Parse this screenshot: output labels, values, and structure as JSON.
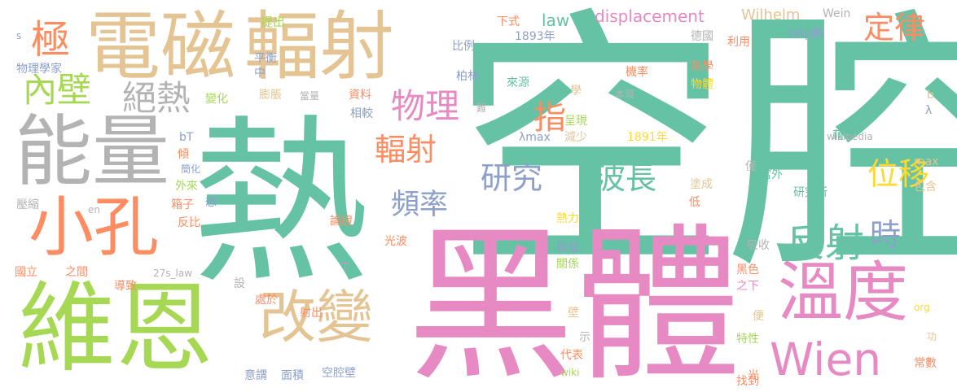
{
  "palette": {
    "green": "#66c2a5",
    "pink": "#e78ac3",
    "tan": "#e5c494",
    "lime": "#a6d854",
    "orange": "#fc8d62",
    "blue": "#8da0cb",
    "gray": "#b3b3b3",
    "yellow": "#ffd92f"
  },
  "words": [
    {
      "text": "熱",
      "color": "green"
    },
    {
      "text": "空腔",
      "color": "green"
    },
    {
      "text": "黑體",
      "color": "pink"
    },
    {
      "text": "電磁",
      "color": "tan"
    },
    {
      "text": "輻射",
      "color": "tan"
    },
    {
      "text": "維恩",
      "color": "lime"
    },
    {
      "text": "能量",
      "color": "gray"
    },
    {
      "text": "小孔",
      "color": "orange"
    },
    {
      "text": "改變",
      "color": "tan"
    },
    {
      "text": "溫度",
      "color": "pink"
    },
    {
      "text": "Wien",
      "color": "pink"
    },
    {
      "text": "反射",
      "color": "green"
    },
    {
      "text": "內壁",
      "color": "lime"
    },
    {
      "text": "極",
      "color": "orange"
    },
    {
      "text": "絕熱",
      "color": "gray"
    },
    {
      "text": "物理",
      "color": "pink"
    },
    {
      "text": "輻射",
      "color": "orange"
    },
    {
      "text": "指",
      "color": "orange"
    },
    {
      "text": "研究",
      "color": "blue"
    },
    {
      "text": "波長",
      "color": "green"
    },
    {
      "text": "頻率",
      "color": "blue"
    },
    {
      "text": "定律",
      "color": "orange"
    },
    {
      "text": "位移",
      "color": "yellow"
    },
    {
      "text": "時",
      "color": "blue"
    },
    {
      "text": "displacement",
      "color": "pink"
    },
    {
      "text": "law",
      "color": "green"
    },
    {
      "text": "Wilhelm",
      "color": "tan"
    },
    {
      "text": "Wein",
      "color": "gray"
    },
    {
      "text": "提出",
      "color": "lime"
    },
    {
      "text": "下式",
      "color": "orange"
    },
    {
      "text": "1893年",
      "color": "blue"
    },
    {
      "text": "比例",
      "color": "blue"
    },
    {
      "text": "平衡",
      "color": "blue"
    },
    {
      "text": "中",
      "color": "blue"
    },
    {
      "text": "物理學家",
      "color": "blue"
    },
    {
      "text": "http開",
      "color": "blue"
    },
    {
      "text": "德國",
      "color": "gray"
    },
    {
      "text": "利用",
      "color": "orange"
    },
    {
      "text": "機率",
      "color": "orange"
    },
    {
      "text": "熱學",
      "color": "orange"
    },
    {
      "text": "物體",
      "color": "yellow"
    },
    {
      "text": "柏林",
      "color": "blue"
    },
    {
      "text": "來源",
      "color": "green"
    },
    {
      "text": "學",
      "color": "tan"
    },
    {
      "text": "膨脹",
      "color": "tan"
    },
    {
      "text": "資料",
      "color": "orange"
    },
    {
      "text": "變化",
      "color": "lime"
    },
    {
      "text": "當量",
      "color": "gray"
    },
    {
      "text": "本質",
      "color": "gray"
    },
    {
      "text": "難",
      "color": "gray"
    },
    {
      "text": "相較",
      "color": "blue"
    },
    {
      "text": "呈現",
      "color": "lime"
    },
    {
      "text": "減少",
      "color": "tan"
    },
    {
      "text": "λmax",
      "color": "blue"
    },
    {
      "text": "1891年",
      "color": "yellow"
    },
    {
      "text": "bT",
      "color": "blue"
    },
    {
      "text": "傾",
      "color": "orange"
    },
    {
      "text": "簡化",
      "color": "blue"
    },
    {
      "text": "外來",
      "color": "lime"
    },
    {
      "text": "箱子",
      "color": "orange"
    },
    {
      "text": "反比",
      "color": "orange"
    },
    {
      "text": "想",
      "color": "blue"
    },
    {
      "text": "en",
      "color": "gray"
    },
    {
      "text": "壓縮",
      "color": "gray"
    },
    {
      "text": "論證",
      "color": "orange"
    },
    {
      "text": "熱力",
      "color": "yellow"
    },
    {
      "text": "光波",
      "color": "orange"
    },
    {
      "text": "模擬",
      "color": "blue"
    },
    {
      "text": "關係",
      "color": "lime"
    },
    {
      "text": "吸收",
      "color": "gray"
    },
    {
      "text": "黑色",
      "color": "orange"
    },
    {
      "text": "之下",
      "color": "pink"
    },
    {
      "text": "國立",
      "color": "orange"
    },
    {
      "text": "之間",
      "color": "orange"
    },
    {
      "text": "27s_law",
      "color": "gray"
    },
    {
      "text": "導致",
      "color": "orange"
    },
    {
      "text": "T",
      "color": "pink"
    },
    {
      "text": "設",
      "color": "gray"
    },
    {
      "text": "處於",
      "color": "orange"
    },
    {
      "text": "射出",
      "color": "orange"
    },
    {
      "text": "壁",
      "color": "tan"
    },
    {
      "text": "示",
      "color": "gray"
    },
    {
      "text": "代表",
      "color": "orange"
    },
    {
      "text": "特性",
      "color": "lime"
    },
    {
      "text": "便",
      "color": "tan"
    },
    {
      "text": "找到",
      "color": "orange"
    },
    {
      "text": "常數",
      "color": "orange"
    },
    {
      "text": "光",
      "color": "orange"
    },
    {
      "text": "wiki",
      "color": "lime"
    },
    {
      "text": "空腔壁",
      "color": "blue"
    },
    {
      "text": "面積",
      "color": "blue"
    },
    {
      "text": "意謂",
      "color": "blue"
    },
    {
      "text": "s",
      "color": "blue"
    },
    {
      "text": "b",
      "color": "tan"
    },
    {
      "text": "λ",
      "color": "blue"
    },
    {
      "text": "max",
      "color": "tan"
    },
    {
      "text": "包含",
      "color": "tan"
    },
    {
      "text": "wikipedia",
      "color": "gray"
    },
    {
      "text": "藉",
      "color": "green"
    },
    {
      "text": "僅",
      "color": "gray"
    },
    {
      "text": "塗成",
      "color": "tan"
    },
    {
      "text": "當外",
      "color": "green"
    },
    {
      "text": "研究所",
      "color": "green"
    },
    {
      "text": "低",
      "color": "orange"
    },
    {
      "text": "org",
      "color": "yellow"
    },
    {
      "text": "功",
      "color": "tan"
    }
  ]
}
